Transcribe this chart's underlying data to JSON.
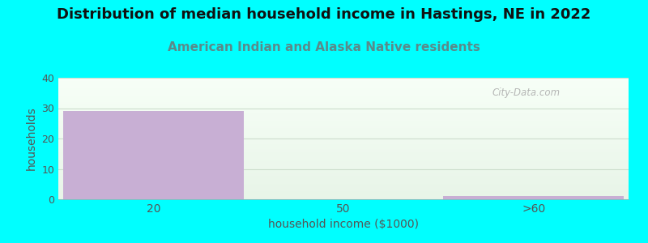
{
  "title": "Distribution of median household income in Hastings, NE in 2022",
  "subtitle": "American Indian and Alaska Native residents",
  "categories": [
    "20",
    "50",
    ">60"
  ],
  "values": [
    29,
    0,
    1
  ],
  "bar_color": "#c8afd4",
  "xlabel": "household income ($1000)",
  "ylabel": "households",
  "ylim": [
    0,
    40
  ],
  "yticks": [
    0,
    10,
    20,
    30,
    40
  ],
  "background_color": "#00ffff",
  "title_fontsize": 13,
  "subtitle_fontsize": 11,
  "subtitle_color": "#5a8a8a",
  "watermark": "City-Data.com",
  "grid_color": "#ccddcc",
  "axis_color": "#555555"
}
